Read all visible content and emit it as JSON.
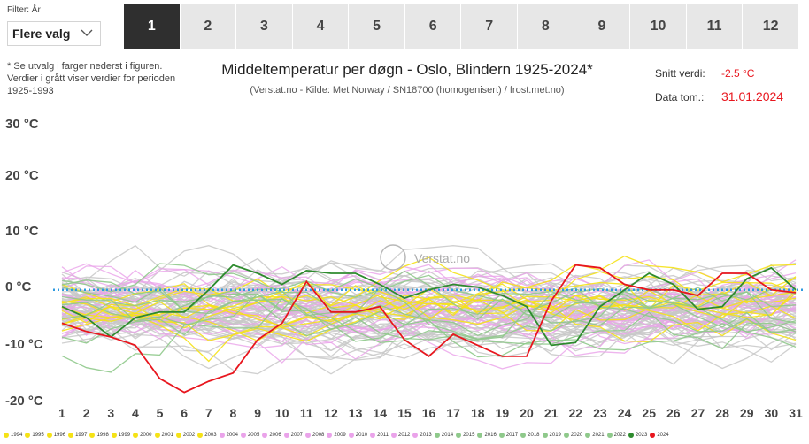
{
  "filter": {
    "label": "Filter: År",
    "value": "Flere valg"
  },
  "tabs": [
    "1",
    "2",
    "3",
    "4",
    "5",
    "6",
    "7",
    "8",
    "9",
    "10",
    "11",
    "12"
  ],
  "active_tab": 0,
  "note": "* Se utvalg i farger nederst i figuren. Verdier i grått viser verdier for perioden 1925-1993",
  "header": {
    "title": "Middeltemperatur per døgn - Oslo, Blindern 1925-2024*",
    "subtitle": "(Verstat.no - Kilde: Met Norway / SN18700 (homogenisert) / frost.met.no)"
  },
  "stats": {
    "avg_label": "Snitt verdi:",
    "avg_value": "-2.5 °C",
    "date_label": "Data tom.:",
    "date_value": "31.01.2024"
  },
  "watermark": "Verstat.no",
  "colors": {
    "grey": "#c8c8c8",
    "yellow": "#f5e216",
    "pink": "#eaa3ea",
    "green_light": "#8fc98b",
    "green_dark": "#2e8b2e",
    "red": "#e8161e",
    "mean_line": "#2e9ae0",
    "tab_active": "#2f2f2f",
    "tab_inactive": "#e7e7e7"
  },
  "chart_data": {
    "type": "line",
    "title": "Middeltemperatur per døgn - Oslo, Blindern 1925-2024*",
    "x": [
      1,
      2,
      3,
      4,
      5,
      6,
      7,
      8,
      9,
      10,
      11,
      12,
      13,
      14,
      15,
      16,
      17,
      18,
      19,
      20,
      21,
      22,
      23,
      24,
      25,
      26,
      27,
      28,
      29,
      30,
      31
    ],
    "yticks": [
      "30 °C",
      "20 °C",
      "10 °C",
      "0 °C",
      "-10 °C",
      "-20 °C"
    ],
    "ylim": [
      -20,
      30
    ],
    "xlim": [
      1,
      31
    ],
    "grid": false,
    "reference_line": {
      "y": 0,
      "style": "dotted"
    },
    "series": [
      {
        "name": "2024",
        "color": "#e8161e",
        "values": [
          -6,
          -7.5,
          -8.5,
          -10,
          -16,
          -18.5,
          -16.5,
          -15,
          -9,
          -6,
          1.5,
          -4,
          -4,
          -3,
          -9,
          -12,
          -8,
          -10,
          -12,
          -12,
          -2,
          4.5,
          4,
          1,
          0,
          0,
          -1,
          3,
          3,
          0,
          -0.5
        ]
      },
      {
        "name": "2023",
        "color": "#2e8b2e",
        "values": [
          -3,
          -5,
          -8.5,
          -5,
          -4,
          -4,
          0,
          4.5,
          3,
          1,
          3.5,
          3,
          3,
          1,
          -1.5,
          0,
          1,
          0.5,
          -1,
          -3,
          -10,
          -9.5,
          -3,
          0,
          3,
          1,
          -3.5,
          -3,
          2,
          4,
          0
        ]
      }
    ],
    "legend": [
      "1994",
      "1995",
      "1996",
      "1997",
      "1998",
      "1999",
      "2000",
      "2001",
      "2002",
      "2003",
      "2004",
      "2005",
      "2006",
      "2007",
      "2008",
      "2009",
      "2010",
      "2011",
      "2012",
      "2013",
      "2014",
      "2015",
      "2016",
      "2017",
      "2018",
      "2019",
      "2020",
      "2021",
      "2022",
      "2023",
      "2024"
    ]
  }
}
